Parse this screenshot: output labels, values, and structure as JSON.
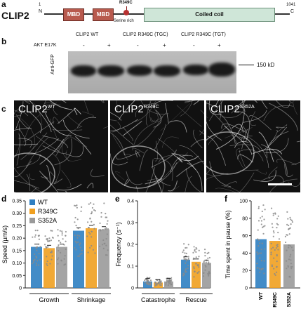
{
  "panel_a": {
    "label": "a",
    "protein": "CLIP2",
    "start": "1",
    "n_term": "N",
    "end": "1041",
    "c_term": "C",
    "domains": [
      "MBD",
      "MBD",
      "Coiled coil"
    ],
    "mutation": "R349C",
    "serine_rich": "Serine rich"
  },
  "panel_b": {
    "label": "b",
    "lanes": [
      "CLIP2 WT",
      "CLIP2 R349C (TGC)",
      "CLIP2 R349C (TGT)"
    ],
    "akt_label": "AKT E17K",
    "akt_signs": [
      "-",
      "+",
      "-",
      "+",
      "-",
      "+"
    ],
    "antibody": "Anti-GFP",
    "marker": "150 kD"
  },
  "panel_c": {
    "label": "c",
    "images": [
      {
        "name": "CLIP2",
        "sup": "WT"
      },
      {
        "name": "CLIP2",
        "sup": "R349C"
      },
      {
        "name": "CLIP2",
        "sup": "S352A"
      }
    ]
  },
  "colors": {
    "wt": "#2f7fc1",
    "r349c": "#f0a020",
    "s352a": "#9a9a9a",
    "domain": "#b85a4e",
    "coiled": "#cfe6d8"
  },
  "chart_data": [
    {
      "panel": "d",
      "type": "bar",
      "ylabel": "Speed (µm/s)",
      "ylim": [
        0,
        0.35
      ],
      "yticks": [
        "0",
        "0.05",
        "0.10",
        "0.15",
        "0.20",
        "0.25",
        "0.30",
        "0.35"
      ],
      "groups": [
        "Growth",
        "Shrinkage"
      ],
      "legend": [
        "WT",
        "R349C",
        "S352A"
      ],
      "series": [
        {
          "name": "WT",
          "values": [
            0.165,
            0.23
          ]
        },
        {
          "name": "R349C",
          "values": [
            0.16,
            0.24
          ]
        },
        {
          "name": "S352A",
          "values": [
            0.165,
            0.235
          ]
        }
      ]
    },
    {
      "panel": "e",
      "type": "bar",
      "ylabel": "Frequency (s⁻¹)",
      "ylim": [
        0,
        0.4
      ],
      "yticks": [
        "0",
        "0.1",
        "0.2",
        "0.3",
        "0.4"
      ],
      "groups": [
        "Catastrophe",
        "Rescue"
      ],
      "series": [
        {
          "name": "WT",
          "values": [
            0.03,
            0.13
          ]
        },
        {
          "name": "R349C",
          "values": [
            0.025,
            0.12
          ]
        },
        {
          "name": "S352A",
          "values": [
            0.03,
            0.115
          ]
        }
      ]
    },
    {
      "panel": "f",
      "type": "bar",
      "ylabel": "Time spent in pause (%)",
      "ylim": [
        0,
        100
      ],
      "yticks": [
        "0",
        "20",
        "40",
        "60",
        "80",
        "100"
      ],
      "categories": [
        "WT",
        "R349C",
        "S352A"
      ],
      "values": [
        56,
        54,
        50
      ]
    }
  ]
}
